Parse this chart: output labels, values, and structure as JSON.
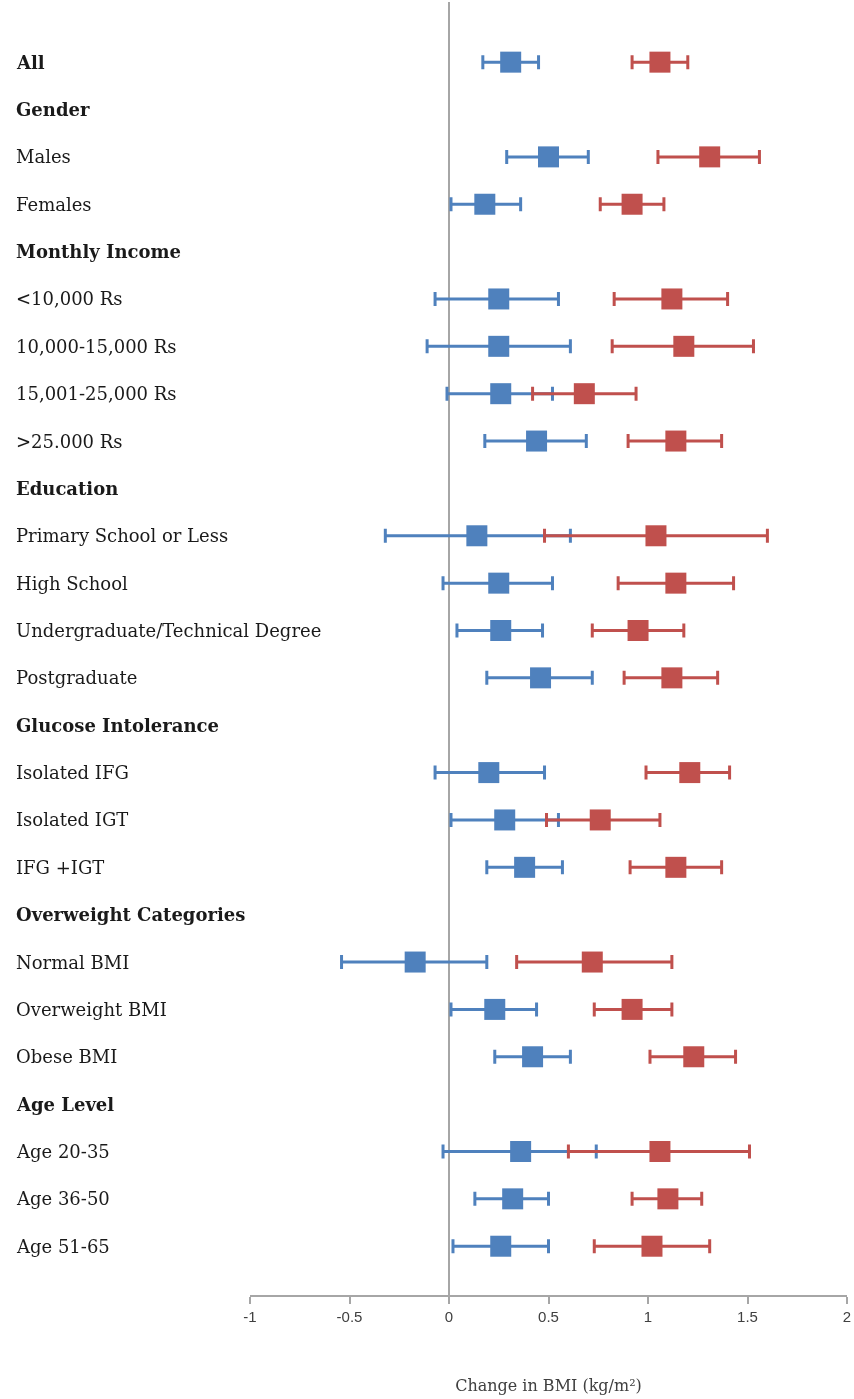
{
  "chart_data": {
    "type": "scatter",
    "orientation": "horizontal",
    "xlabel": "Change in BMI (kg/m²)",
    "categories": [
      "All",
      "Gender",
      "Males",
      "Females",
      "Monthly Income",
      "<10,000 Rs",
      "10,000-15,000 Rs",
      "15,001-25,000 Rs",
      ">25.000 Rs",
      "Education",
      "Primary School or Less",
      "High School",
      "Undergraduate/Technical Degree",
      "Postgraduate",
      "Glucose Intolerance",
      "Isolated IFG",
      "Isolated IGT",
      "IFG +IGT",
      "Overweight Categories",
      "Normal BMI",
      "Overweight BMI",
      "Obese BMI",
      "Age Level",
      "Age 20-35",
      "Age 36-50",
      "Age 51-65"
    ],
    "series": [
      {
        "color": "#4f81bd",
        "values": [
          0.31,
          null,
          0.5,
          0.18,
          null,
          0.25,
          0.25,
          0.26,
          0.44,
          null,
          0.14,
          0.25,
          0.26,
          0.46,
          null,
          0.2,
          0.28,
          0.38,
          null,
          -0.17,
          0.23,
          0.42,
          null,
          0.36,
          0.32,
          0.26
        ],
        "errors": [
          [
            0.17,
            0.45
          ],
          null,
          [
            0.29,
            0.7
          ],
          [
            0.01,
            0.36
          ],
          null,
          [
            -0.07,
            0.55
          ],
          [
            -0.11,
            0.61
          ],
          [
            -0.01,
            0.52
          ],
          [
            0.18,
            0.69
          ],
          null,
          [
            -0.32,
            0.61
          ],
          [
            -0.03,
            0.52
          ],
          [
            0.04,
            0.47
          ],
          [
            0.19,
            0.72
          ],
          null,
          [
            -0.07,
            0.48
          ],
          [
            0.01,
            0.55
          ],
          [
            0.19,
            0.57
          ],
          null,
          [
            -0.54,
            0.19
          ],
          [
            0.01,
            0.44
          ],
          [
            0.23,
            0.61
          ],
          null,
          [
            -0.03,
            0.74
          ],
          [
            0.13,
            0.5
          ],
          [
            0.02,
            0.5
          ]
        ]
      },
      {
        "color": "#c0504d",
        "values": [
          1.06,
          null,
          1.31,
          0.92,
          null,
          1.12,
          1.18,
          0.68,
          1.14,
          null,
          1.04,
          1.14,
          0.95,
          1.12,
          null,
          1.21,
          0.76,
          1.14,
          null,
          0.72,
          0.92,
          1.23,
          null,
          1.06,
          1.1,
          1.02
        ],
        "errors": [
          [
            0.92,
            1.2
          ],
          null,
          [
            1.05,
            1.56
          ],
          [
            0.76,
            1.08
          ],
          null,
          [
            0.83,
            1.4
          ],
          [
            0.82,
            1.53
          ],
          [
            0.42,
            0.94
          ],
          [
            0.9,
            1.37
          ],
          null,
          [
            0.48,
            1.6
          ],
          [
            0.85,
            1.43
          ],
          [
            0.72,
            1.18
          ],
          [
            0.88,
            1.35
          ],
          null,
          [
            0.99,
            1.41
          ],
          [
            0.49,
            1.06
          ],
          [
            0.91,
            1.37
          ],
          null,
          [
            0.34,
            1.12
          ],
          [
            0.73,
            1.12
          ],
          [
            1.01,
            1.44
          ],
          null,
          [
            0.6,
            1.51
          ],
          [
            0.92,
            1.27
          ],
          [
            0.73,
            1.31
          ]
        ]
      }
    ],
    "xlim": [
      -1,
      2
    ],
    "xticks": [
      -1,
      -0.5,
      0,
      0.5,
      1,
      1.5,
      2
    ],
    "ref_lines": [
      {
        "axis": "x",
        "value": 0,
        "color": "#a6a6a6"
      }
    ],
    "grid": false,
    "marker": "square"
  }
}
